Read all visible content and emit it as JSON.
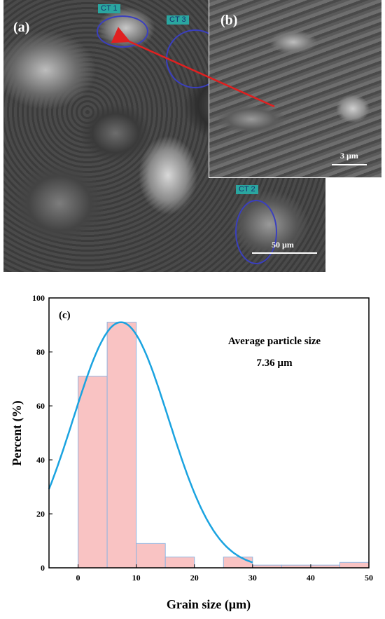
{
  "micrograph_a": {
    "panel_label": "(a)",
    "tags": [
      "CT 1",
      "CT 3",
      "CT 2"
    ],
    "scale_bar": "50 µm"
  },
  "micrograph_b": {
    "panel_label": "(b)",
    "scale_bar": "3 µm"
  },
  "colors": {
    "bar_fill": "#f9c3c3",
    "bar_stroke": "#8fb4e0",
    "curve": "#1aa3e0",
    "ellipse": "#3a3fbf",
    "arrow": "#e02020"
  },
  "chart_data": {
    "type": "bar",
    "panel_label": "(c)",
    "xlabel": "Grain size (µm)",
    "ylabel": "Percent (%)",
    "xlim": [
      -5,
      50
    ],
    "ylim": [
      0,
      100
    ],
    "xticks": [
      0,
      10,
      20,
      30,
      40,
      50
    ],
    "yticks": [
      0,
      20,
      40,
      60,
      80,
      100
    ],
    "bins": [
      {
        "start": 0,
        "end": 5,
        "value": 71
      },
      {
        "start": 5,
        "end": 10,
        "value": 91
      },
      {
        "start": 10,
        "end": 15,
        "value": 9
      },
      {
        "start": 15,
        "end": 20,
        "value": 4
      },
      {
        "start": 20,
        "end": 25,
        "value": 0
      },
      {
        "start": 25,
        "end": 30,
        "value": 4
      },
      {
        "start": 30,
        "end": 35,
        "value": 1
      },
      {
        "start": 35,
        "end": 40,
        "value": 1
      },
      {
        "start": 40,
        "end": 45,
        "value": 1
      },
      {
        "start": 45,
        "end": 50,
        "value": 2
      }
    ],
    "fit_curve": {
      "type": "normal",
      "mean": 7.36,
      "peak": 91,
      "sigma": 8.2
    },
    "annotation_line1": "Average particle size",
    "annotation_line2": "7.36 µm"
  }
}
